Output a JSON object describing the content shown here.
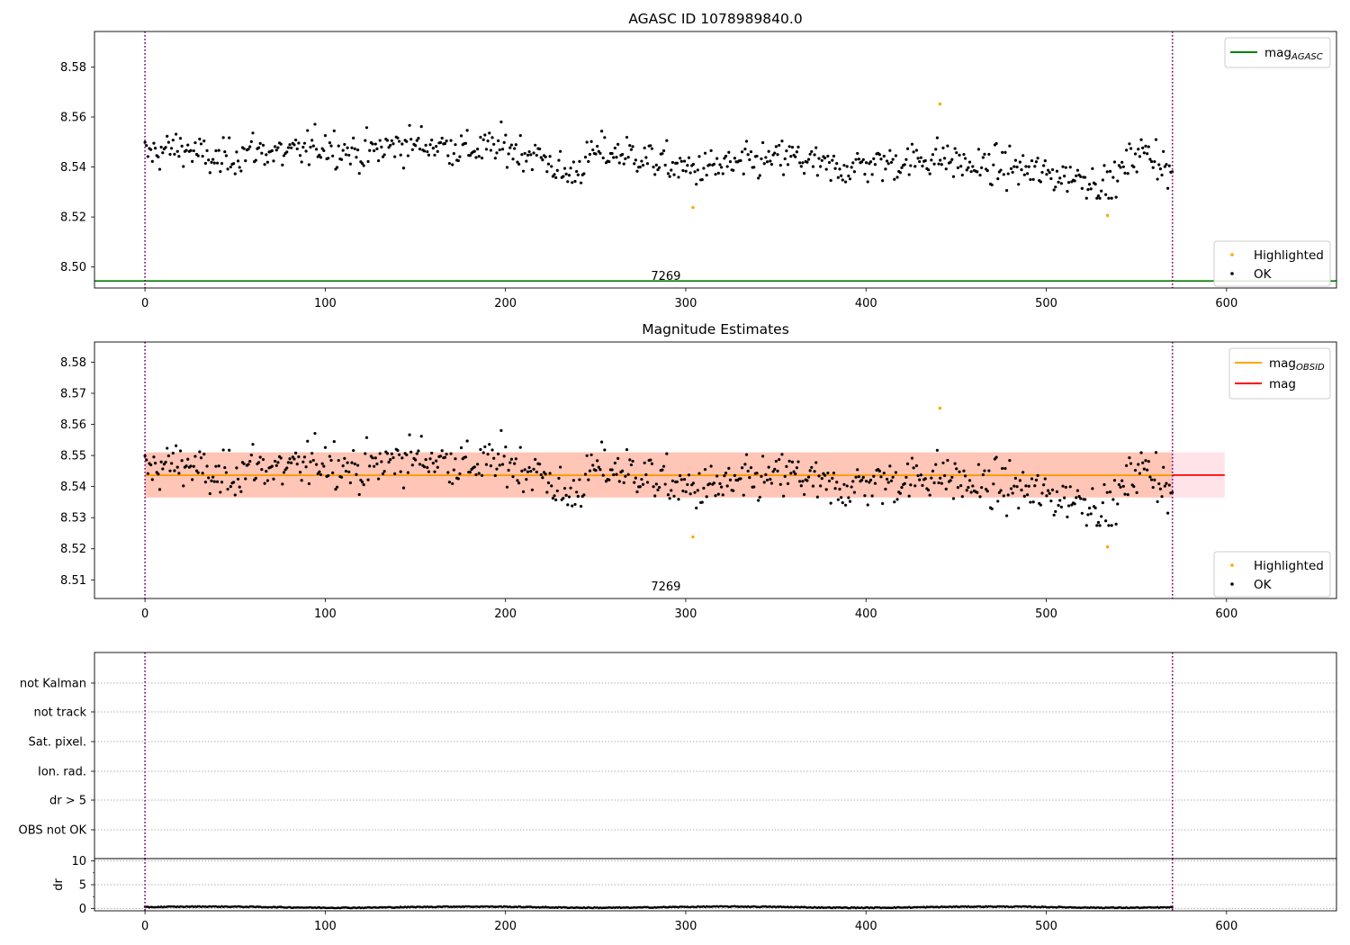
{
  "chart_data": [
    {
      "type": "scatter",
      "title": "AGASC ID 1078989840.0",
      "xlim": [
        -28,
        661
      ],
      "ylim": [
        8.4916,
        8.5942
      ],
      "x_ticks": [
        0,
        100,
        200,
        300,
        400,
        500,
        600
      ],
      "y_ticks": [
        8.5,
        8.52,
        8.54,
        8.56,
        8.58
      ],
      "y_tick_labels": [
        "8.50",
        "8.52",
        "8.54",
        "8.56",
        "8.58"
      ],
      "obsid_boundaries": [
        0,
        570
      ],
      "obsid_label": {
        "text": "7269",
        "x": 285
      },
      "lines": [
        {
          "name": "mag_AGASC",
          "label_main": "mag",
          "label_sub": "AGASC",
          "y": 8.4944,
          "color": "#008000"
        }
      ],
      "series": [
        {
          "name": "Highlighted",
          "color": "#ffa500",
          "points": [
            [
              304,
              8.5238
            ],
            [
              441,
              8.5652
            ],
            [
              534,
              8.5206
            ]
          ]
        },
        {
          "name": "OK",
          "color": "#000000",
          "generator": "mag_points"
        }
      ],
      "legend": {
        "lines": "top-right",
        "points": "bottom-right"
      }
    },
    {
      "type": "scatter",
      "title": "Magnitude Estimates",
      "xlim": [
        -28,
        661
      ],
      "ylim": [
        8.504,
        8.5865
      ],
      "x_ticks": [
        0,
        100,
        200,
        300,
        400,
        500,
        600
      ],
      "y_ticks": [
        8.51,
        8.52,
        8.53,
        8.54,
        8.55,
        8.56,
        8.57,
        8.58
      ],
      "y_tick_labels": [
        "8.51",
        "8.52",
        "8.53",
        "8.54",
        "8.55",
        "8.56",
        "8.57",
        "8.58"
      ],
      "obsid_boundaries": [
        0,
        570
      ],
      "obsid_label": {
        "text": "7269",
        "x": 285
      },
      "bands": [
        {
          "x": [
            0,
            599
          ],
          "y": [
            8.5365,
            8.551
          ],
          "color": "#ffc0cb",
          "opacity": 0.45
        },
        {
          "x": [
            0,
            570
          ],
          "y": [
            8.5365,
            8.551
          ],
          "color": "#ffa07a",
          "opacity": 0.45
        }
      ],
      "lines": [
        {
          "name": "mag_OBSID",
          "label_main": "mag",
          "label_sub": "OBSID",
          "y": 8.5437,
          "x": [
            0,
            570
          ],
          "color": "#ffa500"
        },
        {
          "name": "mag",
          "label_main": "mag",
          "label_sub": "",
          "y": 8.5437,
          "x": [
            0,
            599
          ],
          "color": "#ff0000"
        }
      ],
      "series": [
        {
          "name": "Highlighted",
          "color": "#ffa500",
          "points": [
            [
              304,
              8.5238
            ],
            [
              441,
              8.5652
            ],
            [
              534,
              8.5206
            ]
          ]
        },
        {
          "name": "OK",
          "color": "#000000",
          "generator": "mag_points"
        }
      ],
      "legend": {
        "lines": "top-right",
        "points": "bottom-right"
      }
    },
    {
      "type": "line",
      "xlim": [
        -28,
        661
      ],
      "y_category_labels": [
        "not Kalman",
        "not track",
        "Sat. pixel.",
        "Ion. rad.",
        "dr > 5",
        "OBS not OK"
      ],
      "obsid_boundaries": [
        0,
        570
      ]
    },
    {
      "type": "scatter",
      "ylabel": "dr",
      "xlim": [
        -28,
        661
      ],
      "ylim": [
        -0.5,
        10.5
      ],
      "x_ticks": [
        0,
        100,
        200,
        300,
        400,
        500,
        600
      ],
      "y_ticks": [
        0,
        5,
        10
      ],
      "y_tick_labels": [
        "0",
        "5",
        "10"
      ],
      "obsid_boundaries": [
        0,
        570
      ],
      "series": [
        {
          "name": "dr",
          "color": "#000000",
          "generator": "dr_points"
        }
      ]
    }
  ],
  "legends": {
    "top_lines": [
      {
        "main": "mag",
        "sub": "AGASC",
        "color": "#008000"
      }
    ],
    "mid_lines": [
      {
        "main": "mag",
        "sub": "OBSID",
        "color": "#ffa500"
      },
      {
        "main": "mag",
        "sub": "",
        "color": "#ff0000"
      }
    ],
    "points": [
      {
        "label": "Highlighted",
        "color": "#ffa500"
      },
      {
        "label": "OK",
        "color": "#000000"
      }
    ]
  }
}
